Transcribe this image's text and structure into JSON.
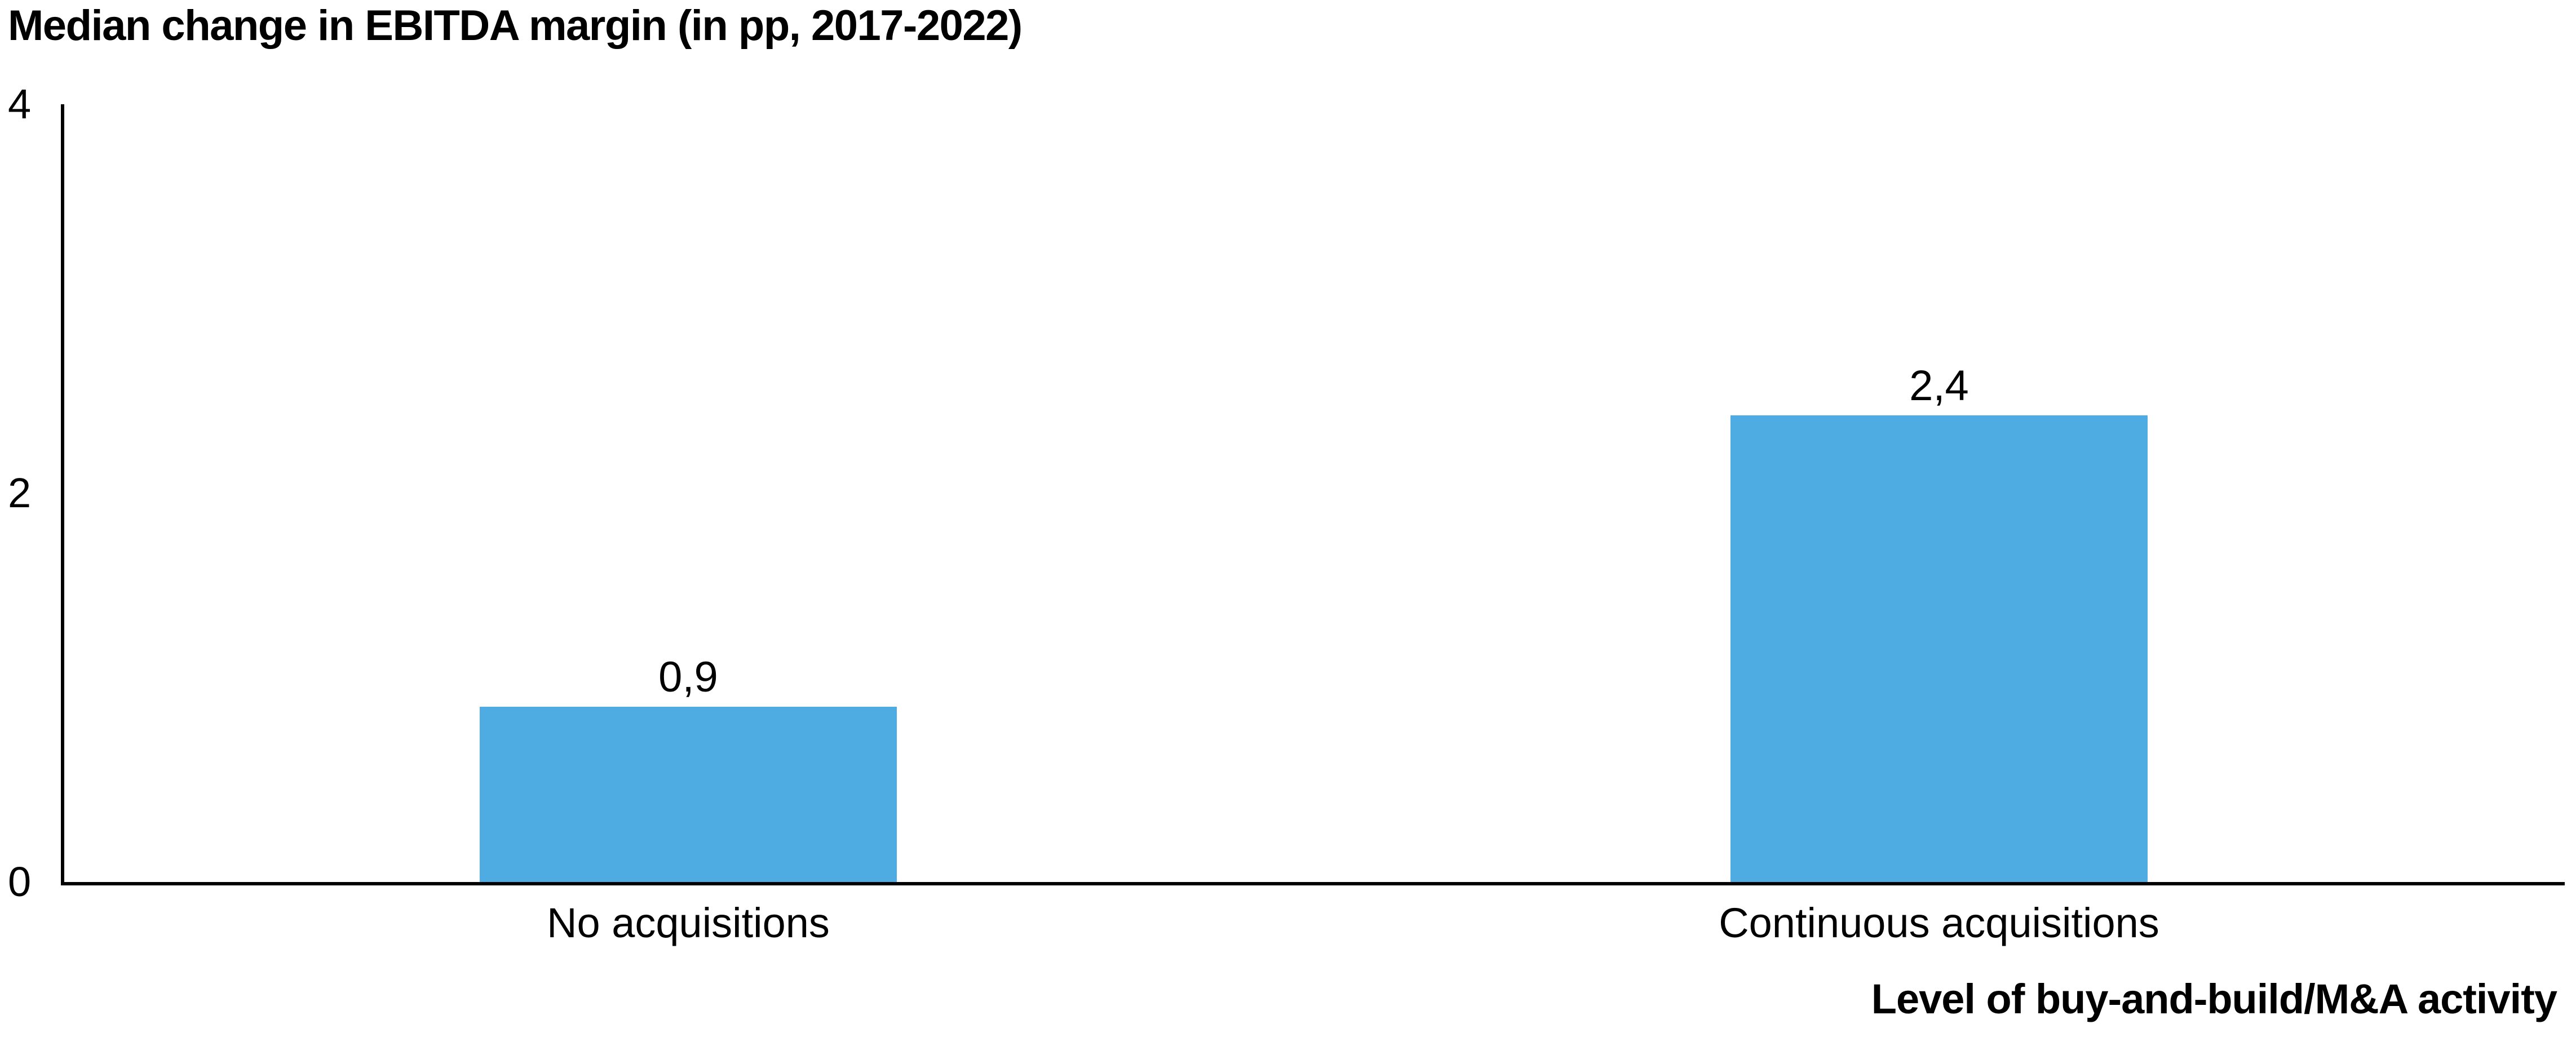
{
  "chart_data": {
    "type": "bar",
    "title": "Median change in EBITDA margin (in pp, 2017-2022)",
    "categories": [
      "No acquisitions",
      "Continuous acquisitions"
    ],
    "values": [
      0.9,
      2.4
    ],
    "value_labels": [
      "0,9",
      "2,4"
    ],
    "xlabel": "Level of buy-and-build/M&A activity",
    "ylabel": "",
    "ylim": [
      0,
      4
    ],
    "yticks": [
      0,
      2,
      4
    ],
    "ytick_labels": [
      "0",
      "2",
      "4"
    ],
    "bar_color": "#4FACE2",
    "axis_color": "#000000",
    "grid": false,
    "legend": "none"
  }
}
